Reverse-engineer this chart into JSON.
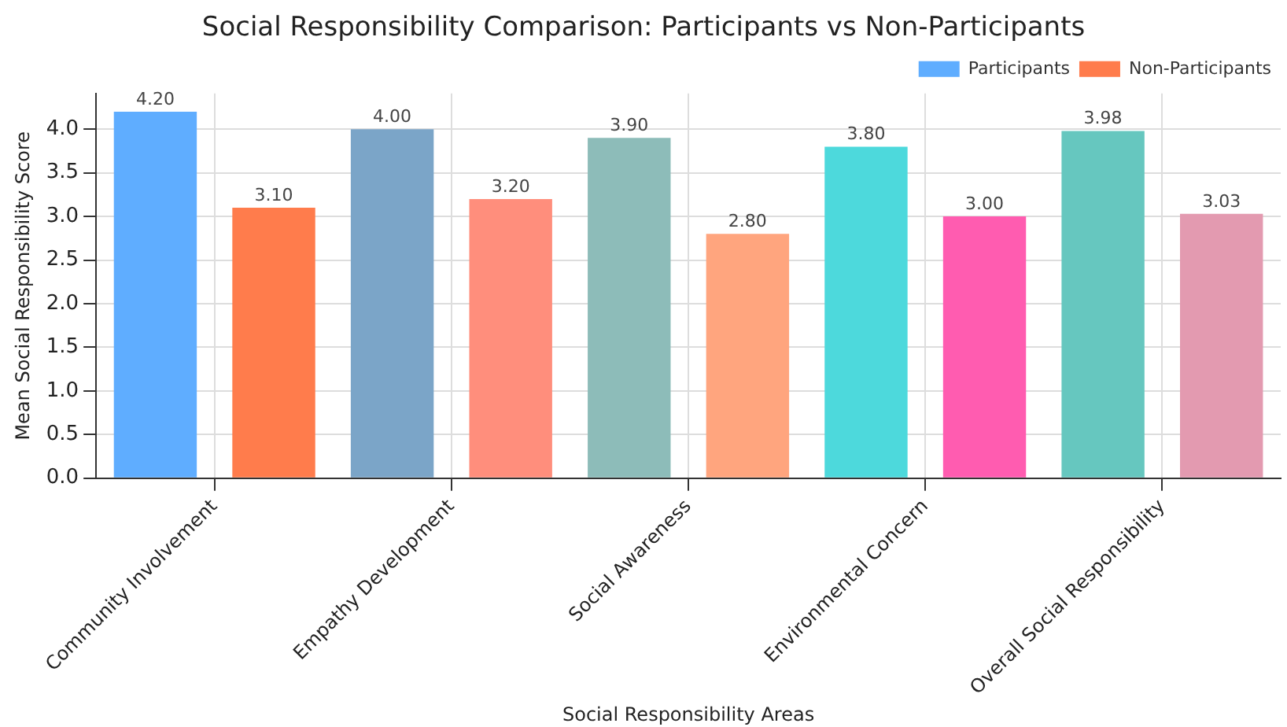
{
  "chart_data": {
    "type": "bar",
    "title": "Social Responsibility Comparison: Participants vs Non-Participants",
    "xlabel": "Social Responsibility Areas",
    "ylabel": "Mean Social Responsibility Score",
    "categories": [
      "Community Involvement",
      "Empathy Development",
      "Social Awareness",
      "Environmental Concern",
      "Overall Social Responsibility"
    ],
    "series": [
      {
        "name": "Participants",
        "colors": [
          "#5fadff",
          "#7ba5c8",
          "#8dbcb9",
          "#4dd9dc",
          "#66c7bf"
        ],
        "values": [
          4.2,
          4.0,
          3.9,
          3.8,
          3.98
        ],
        "value_labels": [
          "4.20",
          "4.00",
          "3.90",
          "3.80",
          "3.98"
        ]
      },
      {
        "name": "Non-Participants",
        "colors": [
          "#ff7c4c",
          "#ff8e7c",
          "#ffa57e",
          "#ff5cb0",
          "#e39ab0"
        ],
        "values": [
          3.1,
          3.2,
          2.8,
          3.0,
          3.03
        ],
        "value_labels": [
          "3.10",
          "3.20",
          "2.80",
          "3.00",
          "3.03"
        ]
      }
    ],
    "ylim": [
      0,
      4.41
    ],
    "yticks": [
      {
        "value": 0,
        "label": "0.0"
      },
      {
        "value": 0.5,
        "label": "0.5"
      },
      {
        "value": 1,
        "label": "1.0"
      },
      {
        "value": 1.5,
        "label": "1.5"
      },
      {
        "value": 2,
        "label": "2.0"
      },
      {
        "value": 2.5,
        "label": "2.5"
      },
      {
        "value": 3,
        "label": "3.0"
      },
      {
        "value": 3.5,
        "label": "3.5"
      },
      {
        "value": 4,
        "label": "4.0"
      }
    ],
    "grid": true,
    "legend": "top right"
  }
}
